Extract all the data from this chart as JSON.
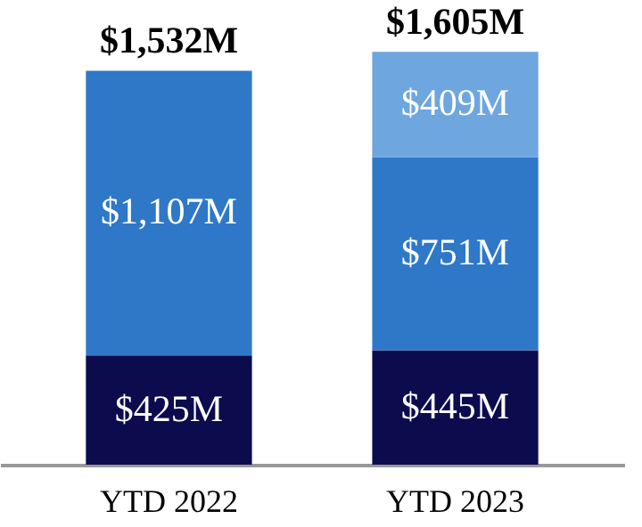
{
  "chart_data": {
    "type": "bar",
    "stacked": true,
    "categories": [
      "YTD 2022",
      "YTD 2023"
    ],
    "series": [
      {
        "color": "#0b0b4d",
        "values": [
          425,
          445
        ],
        "value_labels": [
          "$425M",
          "$445M"
        ]
      },
      {
        "color": "#2f78c8",
        "values": [
          1107,
          751
        ],
        "value_labels": [
          "$1,107M",
          "$751M"
        ]
      },
      {
        "color": "#6ea6e0",
        "values": [
          null,
          409
        ],
        "value_labels": [
          null,
          "$409M"
        ]
      }
    ],
    "totals": [
      "$1,532M",
      "$1,605M"
    ],
    "grid": false
  }
}
